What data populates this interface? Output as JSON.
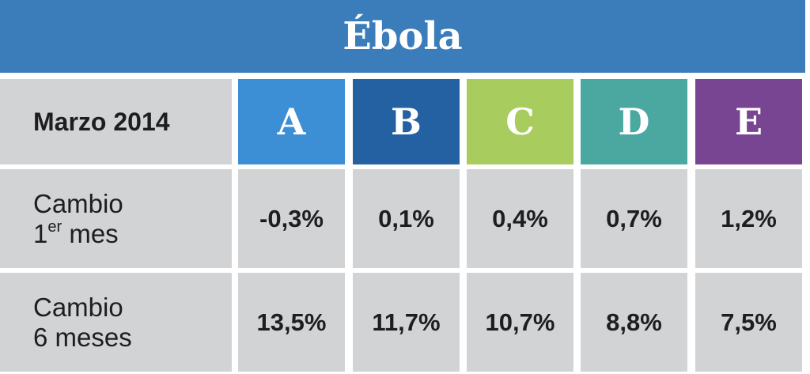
{
  "chart_data": {
    "type": "table",
    "title": "Ébola",
    "corner_label": "Marzo 2014",
    "columns": [
      {
        "label": "A",
        "color": "#3d8fd5"
      },
      {
        "label": "B",
        "color": "#2461a3"
      },
      {
        "label": "C",
        "color": "#a8cc5d"
      },
      {
        "label": "D",
        "color": "#4aa8a1"
      },
      {
        "label": "E",
        "color": "#774591"
      }
    ],
    "rows": [
      {
        "label_line1": "Cambio",
        "label_line2_main": "1",
        "label_line2_sup": "er",
        "label_line2_rest": " mes",
        "values": [
          "-0,3%",
          "0,1%",
          "0,4%",
          "0,7%",
          "1,2%"
        ]
      },
      {
        "label_line1": "Cambio",
        "label_line2_main": "6 meses",
        "label_line2_sup": "",
        "label_line2_rest": "",
        "values": [
          "13,5%",
          "11,7%",
          "10,7%",
          "8,8%",
          "7,5%"
        ]
      }
    ]
  }
}
